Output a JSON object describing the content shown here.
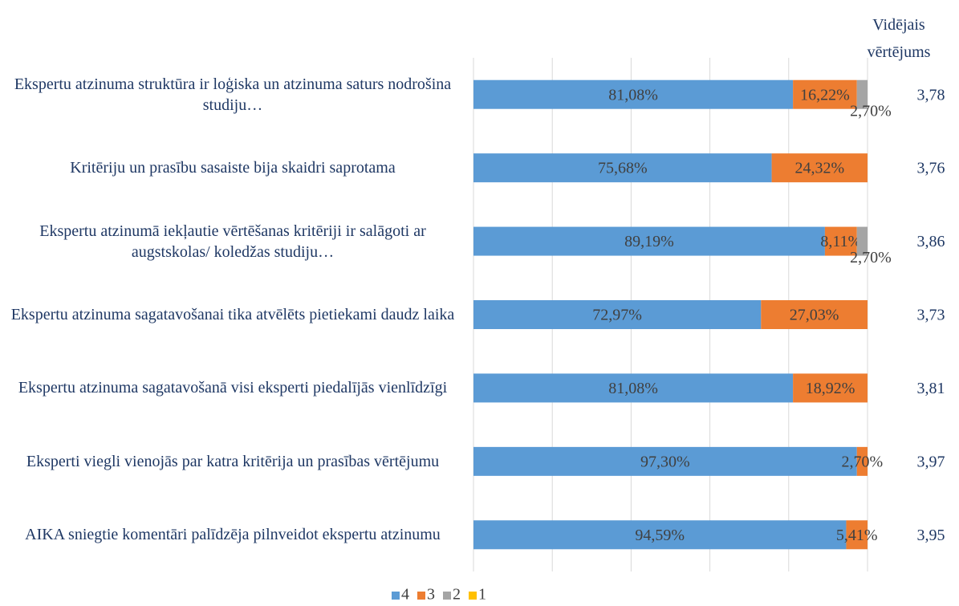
{
  "chart_data": {
    "type": "bar",
    "orientation": "horizontal",
    "stacked": true,
    "categories": [
      "Ekspertu atzinuma struktūra ir loģiska un atzinuma saturs nodrošina studiju…",
      "Kritēriju un prasību sasaiste bija skaidri saprotama",
      "Ekspertu atzinumā iekļautie vērtēšanas kritēriji ir salāgoti ar augstskolas/ koledžas studiju…",
      "Ekspertu atzinuma sagatavošanai tika atvēlēts pietiekami daudz laika",
      "Ekspertu atzinuma sagatavošanā visi eksperti piedalījās vienlīdzīgi",
      "Eksperti viegli vienojās par katra kritērija un prasības vērtējumu",
      "AIKA sniegtie komentāri palīdzēja pilnveidot ekspertu atzinumu"
    ],
    "series": [
      {
        "name": "4",
        "color": "#5b9bd5",
        "values": [
          81.08,
          75.68,
          89.19,
          72.97,
          81.08,
          97.3,
          94.59
        ],
        "value_labels": [
          "81,08%",
          "75,68%",
          "89,19%",
          "72,97%",
          "81,08%",
          "97,30%",
          "94,59%"
        ]
      },
      {
        "name": "3",
        "color": "#ed7d31",
        "values": [
          16.22,
          24.32,
          8.11,
          27.03,
          18.92,
          2.7,
          5.41
        ],
        "value_labels": [
          "16,22%",
          "24,32%",
          "8,11%",
          "27,03%",
          "18,92%",
          "2,70%",
          "5,41%"
        ]
      },
      {
        "name": "2",
        "color": "#a5a5a5",
        "values": [
          2.7,
          0,
          2.7,
          0,
          0,
          0,
          0
        ],
        "value_labels": [
          "2,70%",
          null,
          "2,70%",
          null,
          null,
          null,
          null
        ]
      },
      {
        "name": "1",
        "color": "#ffc000",
        "values": [
          0,
          0,
          0,
          0,
          0,
          0,
          0
        ],
        "value_labels": [
          null,
          null,
          null,
          null,
          null,
          null,
          null
        ]
      }
    ],
    "xlim": [
      0,
      100
    ],
    "xticks": [
      0,
      20,
      40,
      60,
      80,
      100
    ],
    "grid": true,
    "legend": "bottom",
    "average": {
      "title": "Vidējais vērtējums",
      "values": [
        3.78,
        3.76,
        3.86,
        3.73,
        3.81,
        3.97,
        3.95
      ],
      "value_labels": [
        "3,78",
        "3,76",
        "3,86",
        "3,73",
        "3,81",
        "3,97",
        "3,95"
      ]
    }
  }
}
